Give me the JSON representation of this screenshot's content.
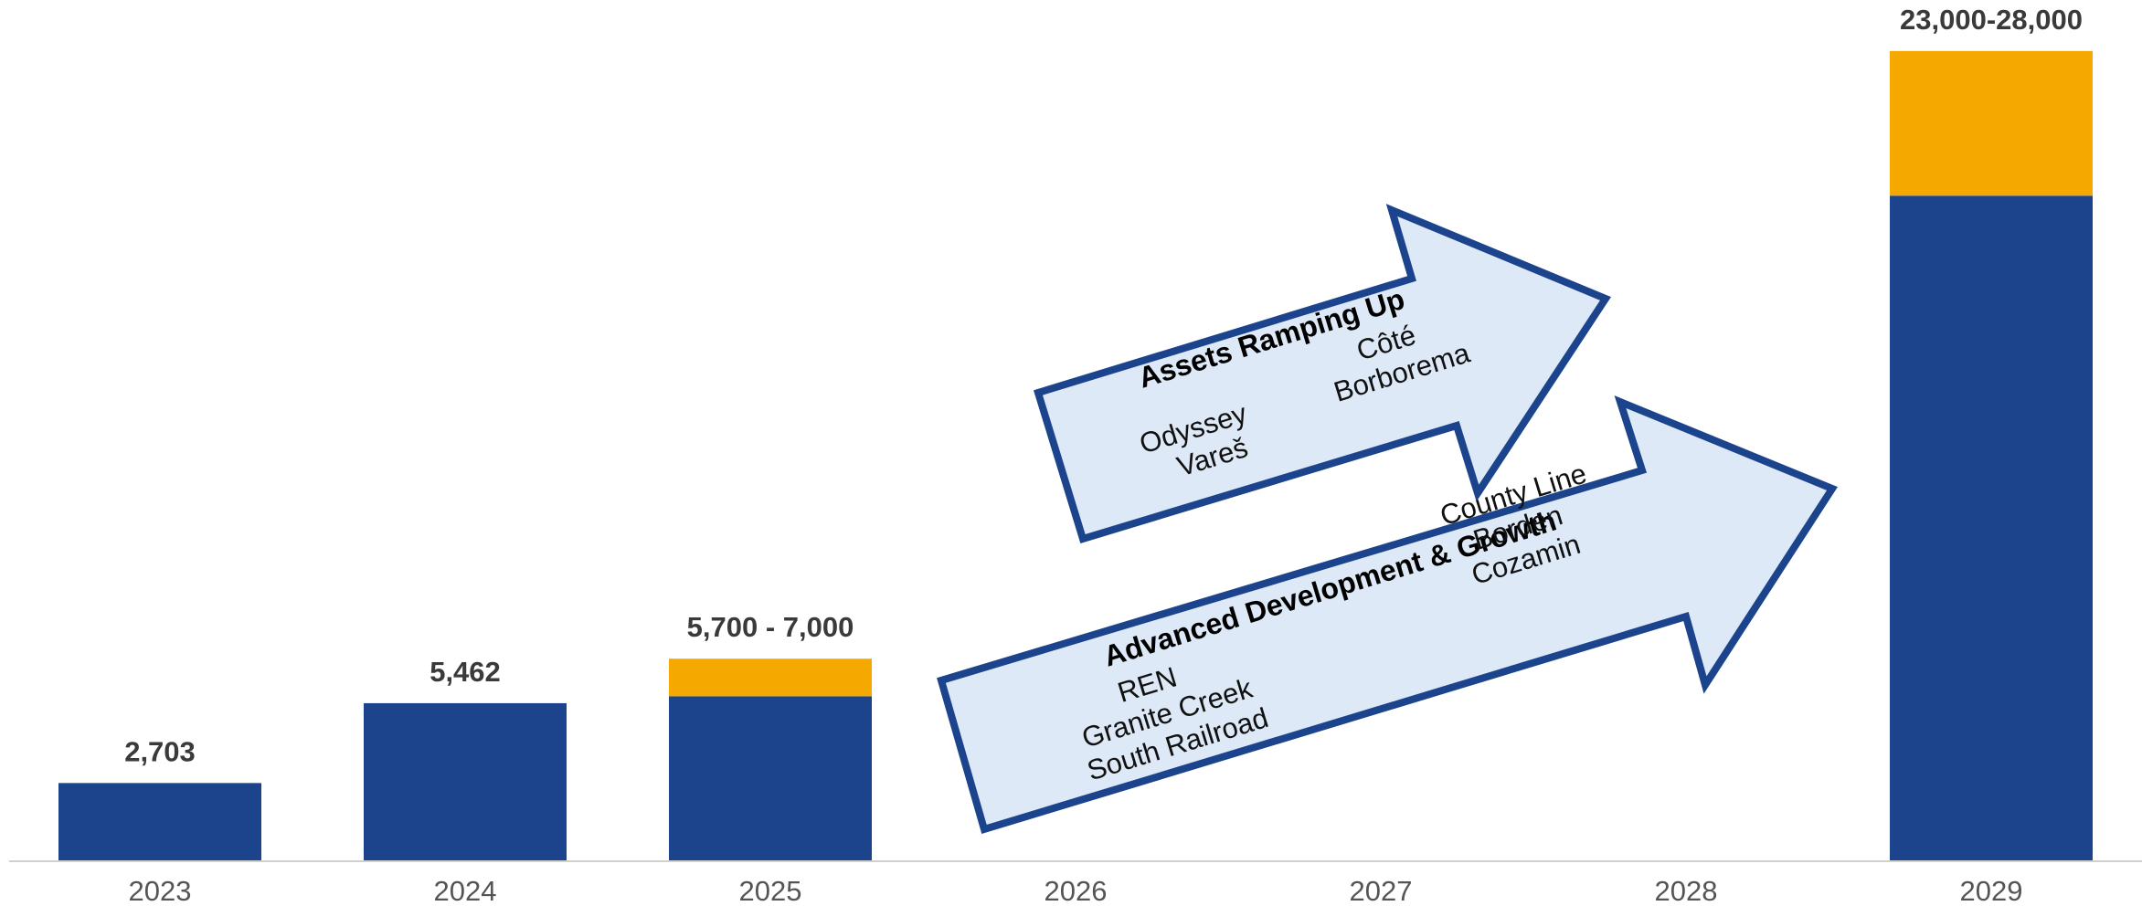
{
  "chart_data": {
    "type": "bar",
    "categories": [
      "2023",
      "2024",
      "2025",
      "2026",
      "2027",
      "2028",
      "2029"
    ],
    "series": [
      {
        "values": [
          2703,
          5462,
          5700,
          null,
          null,
          null,
          23000
        ]
      },
      {
        "values": [
          0,
          0,
          1300,
          null,
          null,
          null,
          5000
        ]
      }
    ],
    "data_labels": [
      "2,703",
      "5,462",
      "5,700 - 7,000",
      "",
      "",
      "",
      "23,000-28,000"
    ],
    "ylim": [
      0,
      28500
    ],
    "grid": false,
    "colors": {
      "base": "#1c448c",
      "range": "#f5a800",
      "arrow_fill": "#dde9f6",
      "arrow_stroke": "#1c448c"
    }
  },
  "arrows": [
    {
      "title": "Assets Ramping Up",
      "left_items": [
        "Odyssey",
        "Vareš"
      ],
      "right_items": [
        "Côté",
        "Borborema"
      ]
    },
    {
      "title": "Advanced Development & Growth",
      "left_items": [
        "REN",
        "Granite Creek",
        "South Railroad"
      ],
      "right_items": [
        "County Line",
        "Borden",
        "Cozamin"
      ]
    }
  ]
}
